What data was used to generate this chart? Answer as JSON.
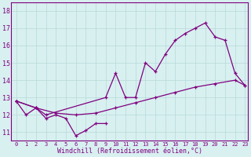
{
  "xlabel": "Windchill (Refroidissement éolien,°C)",
  "bg_color": "#d8f0f0",
  "line_color": "#800080",
  "xlim": [
    -0.5,
    23.3
  ],
  "ylim": [
    10.5,
    18.5
  ],
  "xticks": [
    0,
    1,
    2,
    3,
    4,
    5,
    6,
    7,
    8,
    9,
    10,
    11,
    12,
    13,
    14,
    15,
    16,
    17,
    18,
    19,
    20,
    21,
    22,
    23
  ],
  "yticks": [
    11,
    12,
    13,
    14,
    15,
    16,
    17,
    18
  ],
  "grid_color": "#b8d8d8",
  "line_zigzag_x": [
    0,
    1,
    2,
    3,
    4,
    5,
    6,
    7,
    8,
    9
  ],
  "line_zigzag_y": [
    12.8,
    12.0,
    12.4,
    11.8,
    12.0,
    11.8,
    10.8,
    11.1,
    11.5,
    11.5
  ],
  "line_diag_x": [
    0,
    2,
    4,
    6,
    8,
    10,
    12,
    14,
    16,
    18,
    20,
    22,
    23
  ],
  "line_diag_y": [
    12.8,
    12.4,
    12.1,
    12.0,
    12.1,
    12.4,
    12.7,
    13.0,
    13.3,
    13.6,
    13.8,
    14.0,
    13.7
  ],
  "line_main_x": [
    0,
    2,
    3,
    9,
    10,
    11,
    12,
    13,
    14,
    15,
    16,
    17,
    18,
    19,
    20,
    21,
    22,
    23
  ],
  "line_main_y": [
    12.8,
    12.4,
    12.0,
    13.0,
    14.4,
    13.0,
    13.0,
    15.0,
    14.5,
    15.5,
    16.3,
    16.7,
    17.0,
    17.3,
    16.5,
    16.3,
    14.4,
    13.7
  ]
}
